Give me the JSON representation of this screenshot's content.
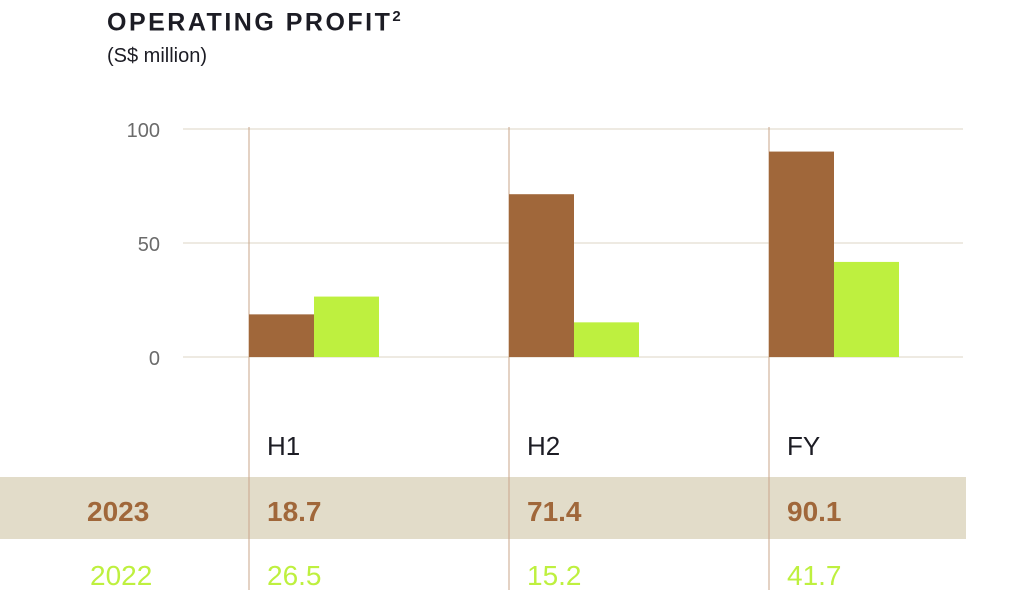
{
  "chart_data": {
    "type": "bar",
    "title": "OPERATING PROFIT",
    "title_superscript": "2",
    "subtitle": "(S$ million)",
    "xlabel": "",
    "ylabel": "",
    "ylim": [
      0,
      100
    ],
    "yticks": [
      "0",
      "50",
      "100"
    ],
    "ytick_values": [
      0,
      50,
      100
    ],
    "grid": true,
    "categories": [
      "H1",
      "H2",
      "FY"
    ],
    "series": [
      {
        "name": "2023",
        "values": [
          18.7,
          71.4,
          90.1
        ],
        "labels": [
          "18.7",
          "71.4",
          "90.1"
        ],
        "color": "#a0673a"
      },
      {
        "name": "2022",
        "values": [
          26.5,
          15.2,
          41.7
        ],
        "labels": [
          "26.5",
          "15.2",
          "41.7"
        ],
        "color": "#bef03f"
      }
    ],
    "band_color": "#e2dcc9"
  }
}
